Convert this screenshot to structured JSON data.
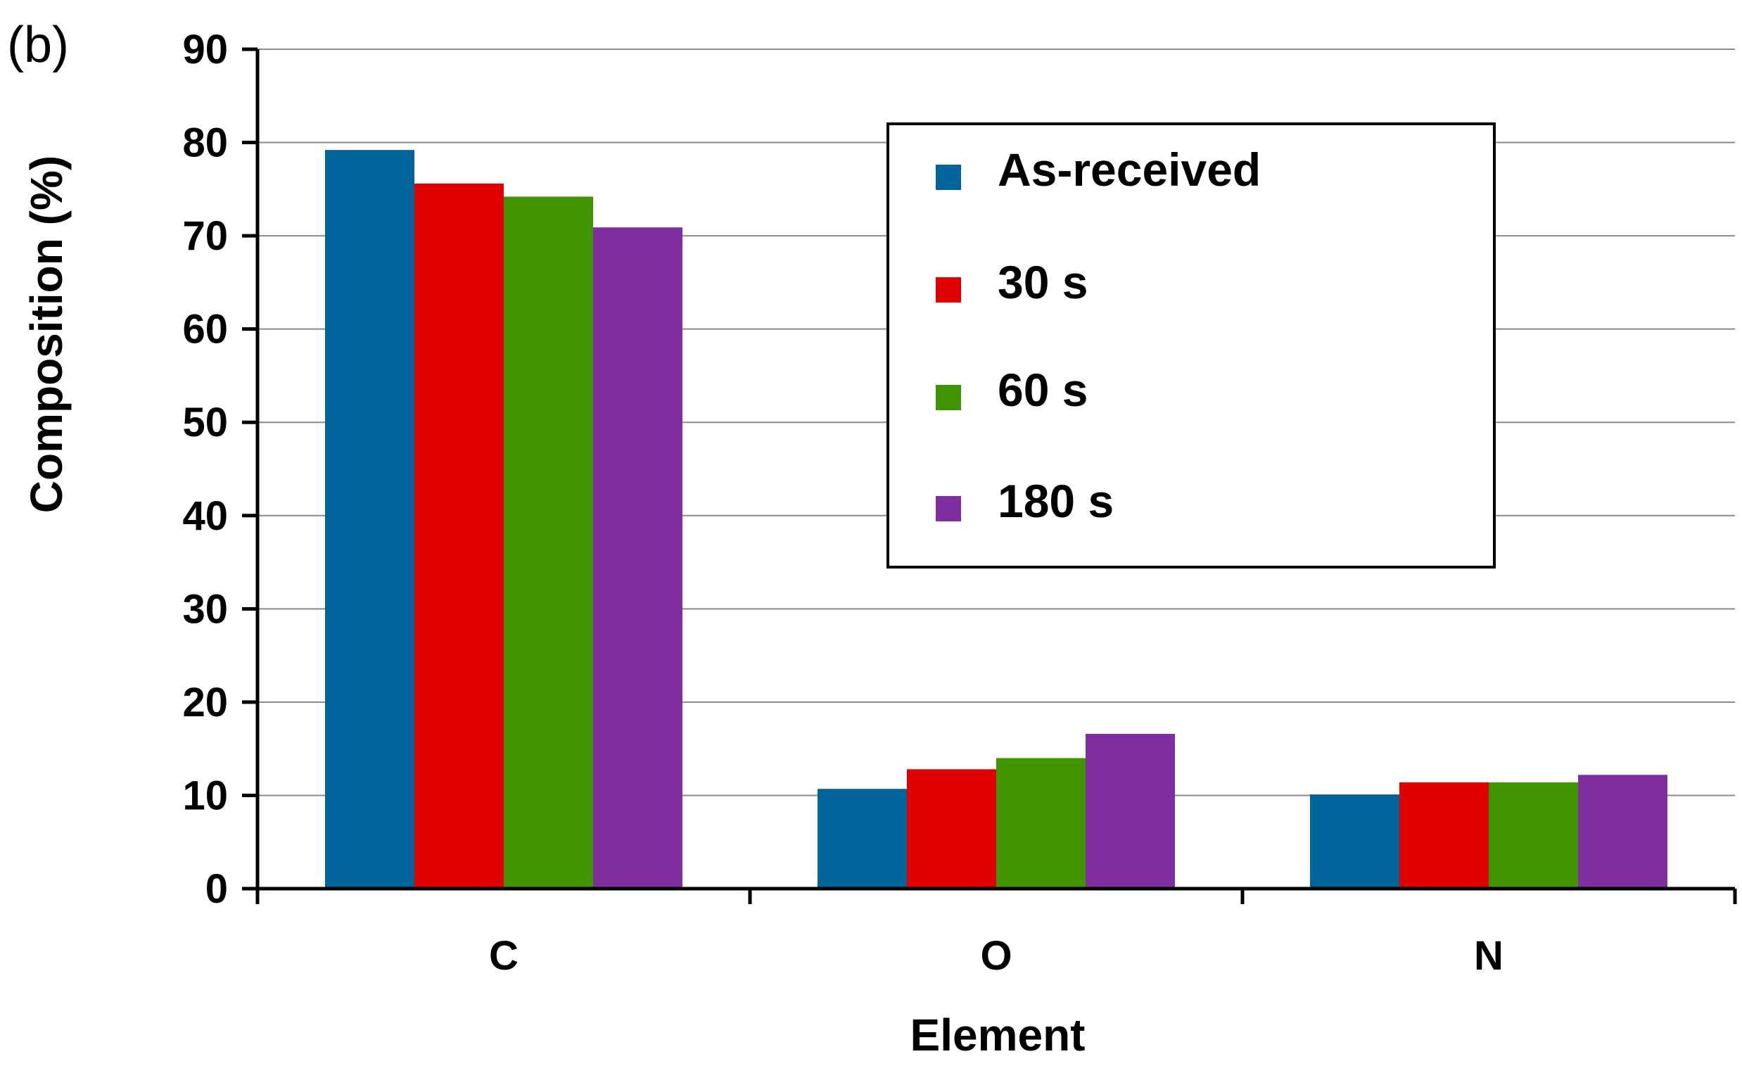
{
  "panel_label": "(b)",
  "chart_data": {
    "type": "bar",
    "categories": [
      "C",
      "O",
      "N"
    ],
    "series": [
      {
        "name": "As-received",
        "color": "#00649b",
        "values": [
          79.2,
          10.7,
          10.1
        ]
      },
      {
        "name": "30 s",
        "color": "#e00000",
        "values": [
          75.6,
          12.8,
          11.4
        ]
      },
      {
        "name": "60 s",
        "color": "#3f9400",
        "values": [
          74.2,
          14.0,
          11.4
        ]
      },
      {
        "name": "180 s",
        "color": "#7f2ea0",
        "values": [
          70.9,
          16.6,
          12.2
        ]
      }
    ],
    "xlabel": "Element",
    "ylabel": "Composition (%)",
    "ylim": [
      0,
      90
    ],
    "yticks": [
      0,
      10,
      20,
      30,
      40,
      50,
      60,
      70,
      80,
      90
    ],
    "grid": true,
    "legend_position": "top-right"
  }
}
